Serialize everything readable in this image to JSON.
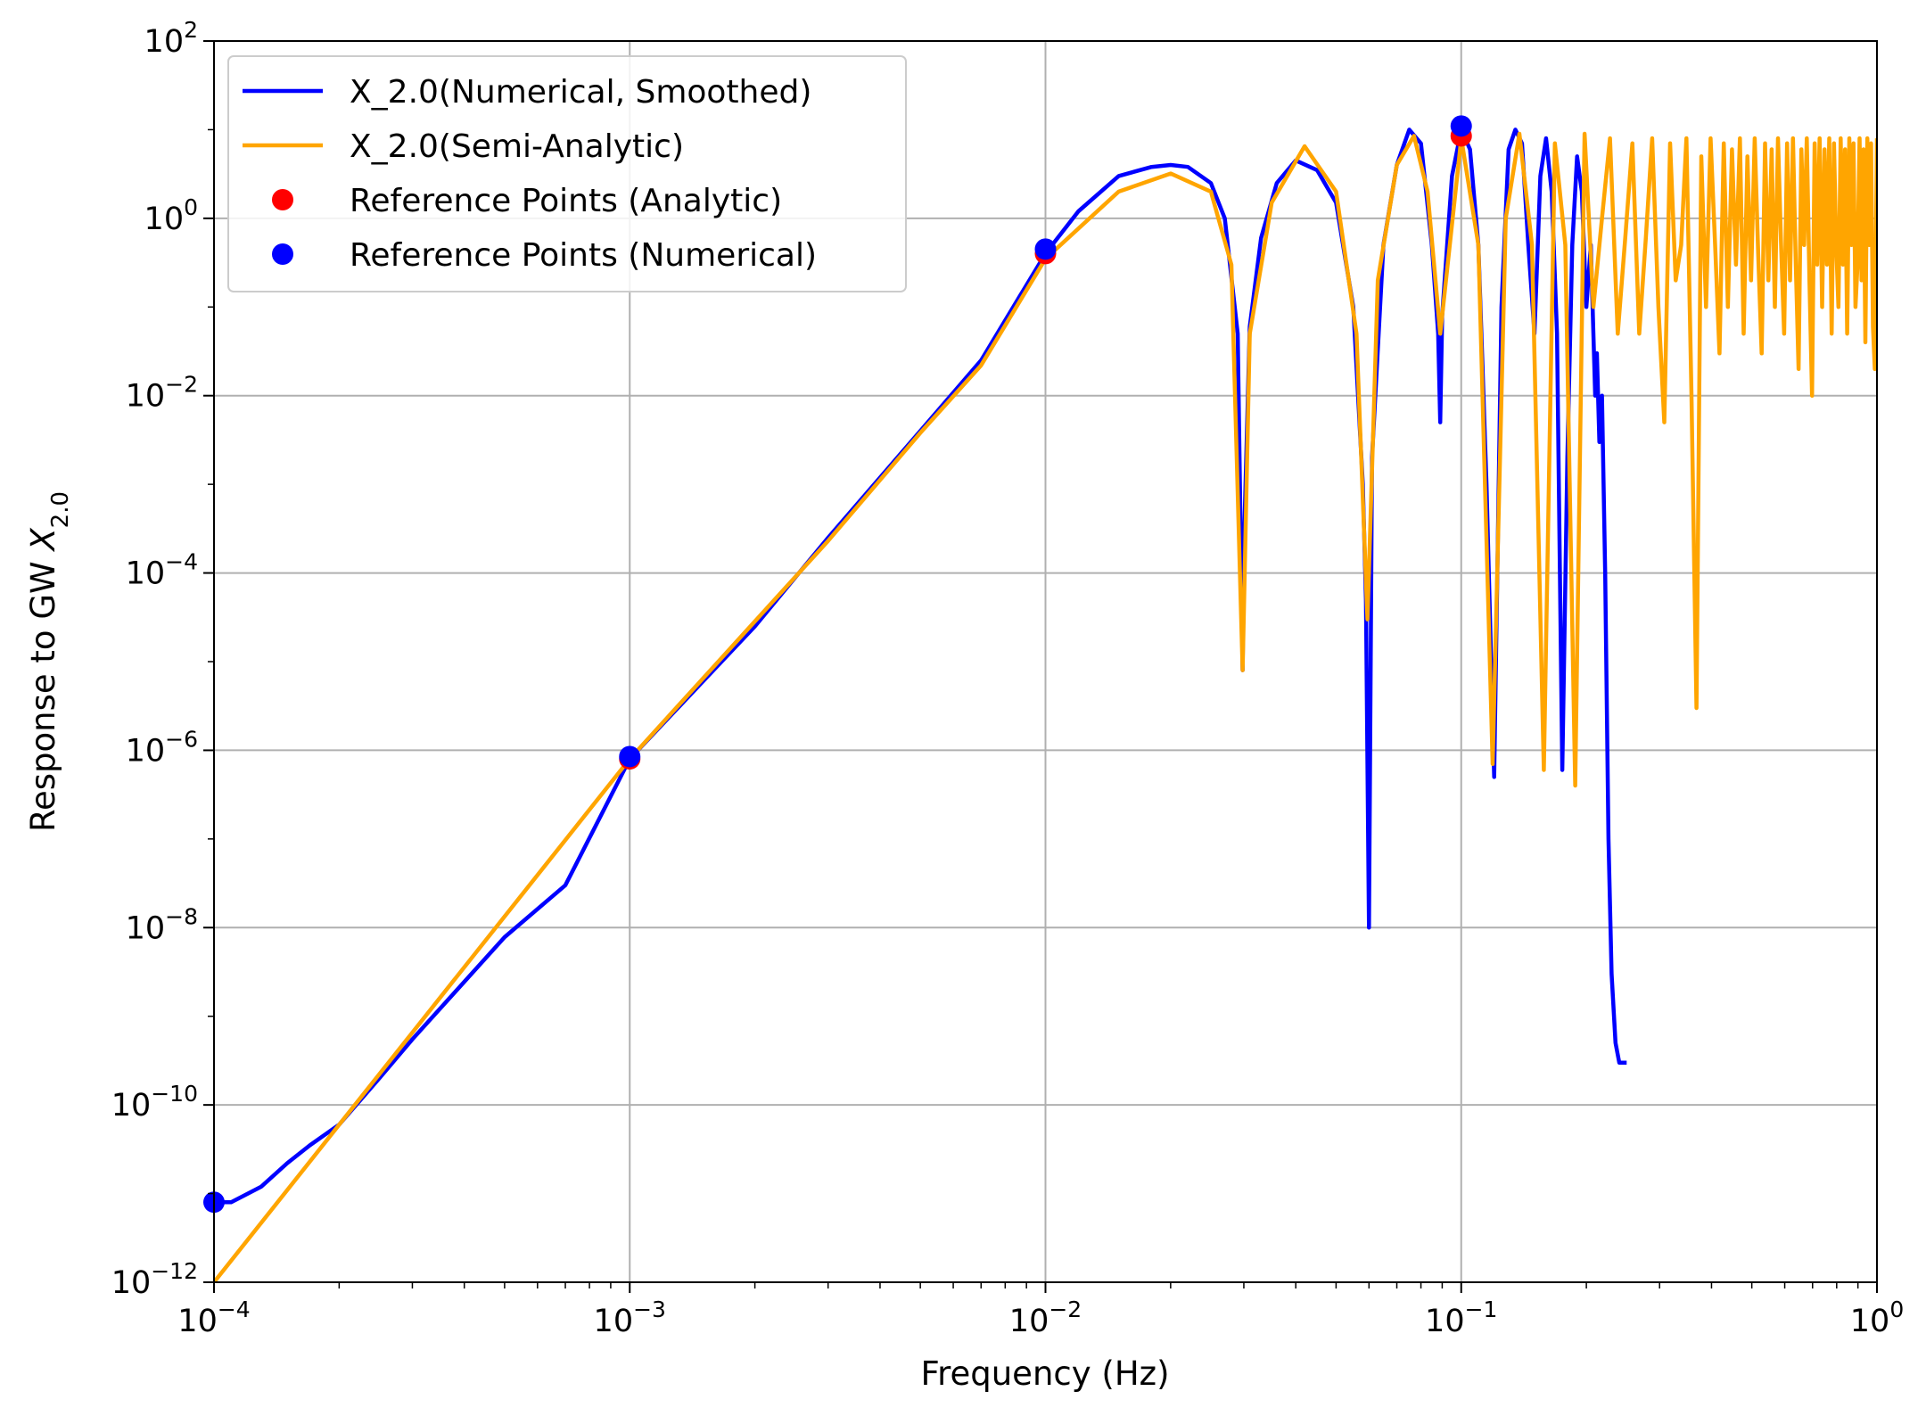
{
  "chart_data": {
    "type": "line",
    "xlabel": "Frequency (Hz)",
    "ylabel_prefix": "Response to GW ",
    "ylabel_var": "X",
    "ylabel_sub": "2.0",
    "xscale": "log",
    "yscale": "log",
    "xlim": [
      0.0001,
      1
    ],
    "ylim": [
      1e-12,
      100
    ],
    "grid": true,
    "legend_position": "upper-left",
    "x_ticks": [
      {
        "base": "10",
        "exp": "−4"
      },
      {
        "base": "10",
        "exp": "−3"
      },
      {
        "base": "10",
        "exp": "−2"
      },
      {
        "base": "10",
        "exp": "−1"
      },
      {
        "base": "10",
        "exp": "0"
      }
    ],
    "y_ticks": [
      {
        "base": "10",
        "exp": "−12"
      },
      {
        "base": "10",
        "exp": "−10"
      },
      {
        "base": "10",
        "exp": "−8"
      },
      {
        "base": "10",
        "exp": "−6"
      },
      {
        "base": "10",
        "exp": "−4"
      },
      {
        "base": "10",
        "exp": "−2"
      },
      {
        "base": "10",
        "exp": "0"
      },
      {
        "base": "10",
        "exp": "2"
      }
    ],
    "series": [
      {
        "name": "X_2.0(Numerical, Smoothed)",
        "color": "#0000ff",
        "kind": "line",
        "x": [
          0.0001,
          0.00011,
          0.00013,
          0.00015,
          0.00017,
          0.0002,
          0.00025,
          0.0003,
          0.0005,
          0.0007,
          0.001,
          0.002,
          0.003,
          0.005,
          0.007,
          0.01,
          0.012,
          0.015,
          0.018,
          0.02,
          0.022,
          0.025,
          0.027,
          0.029,
          0.0298,
          0.03,
          0.031,
          0.033,
          0.036,
          0.04,
          0.045,
          0.05,
          0.055,
          0.058,
          0.059,
          0.06,
          0.061,
          0.065,
          0.07,
          0.075,
          0.08,
          0.085,
          0.088,
          0.089,
          0.09,
          0.095,
          0.1,
          0.105,
          0.11,
          0.115,
          0.12,
          0.125,
          0.13,
          0.135,
          0.14,
          0.145,
          0.15,
          0.155,
          0.16,
          0.165,
          0.17,
          0.175,
          0.18,
          0.185,
          0.19,
          0.195,
          0.2,
          0.205,
          0.21,
          0.212,
          0.215,
          0.218,
          0.222,
          0.226,
          0.23,
          0.235,
          0.24,
          0.245,
          0.25
        ],
        "y": [
          8e-12,
          8e-12,
          1.2e-11,
          2.2e-11,
          3.5e-11,
          6e-11,
          2e-10,
          5.5e-10,
          7.8e-09,
          3e-08,
          8e-07,
          2.5e-05,
          0.00025,
          0.004,
          0.025,
          0.4,
          1.2,
          3,
          3.8,
          4,
          3.8,
          2.5,
          1,
          0.05,
          8e-06,
          0.0002,
          0.06,
          0.6,
          2.5,
          4.5,
          3.5,
          1.5,
          0.1,
          0.001,
          5e-05,
          1e-08,
          0.002,
          0.5,
          4,
          10,
          7,
          0.5,
          0.05,
          0.005,
          0.08,
          3,
          10,
          6,
          0.5,
          0.001,
          5e-07,
          0.1,
          6,
          10,
          7,
          0.5,
          0.05,
          3,
          8,
          2,
          0.05,
          6e-07,
          0.002,
          0.5,
          5,
          2,
          0.1,
          0.5,
          0.01,
          0.03,
          0.003,
          0.01,
          0.0001,
          1e-07,
          3e-09,
          5e-10,
          3e-10,
          3e-10,
          3e-10
        ]
      },
      {
        "name": "X_2.0(Semi-Analytic)",
        "color": "#ffa500",
        "kind": "line",
        "x": [
          0.0001,
          0.001,
          0.003,
          0.005,
          0.007,
          0.01,
          0.015,
          0.02,
          0.025,
          0.028,
          0.0298,
          0.031,
          0.035,
          0.042,
          0.05,
          0.056,
          0.0595,
          0.063,
          0.07,
          0.077,
          0.083,
          0.089,
          0.1,
          0.11,
          0.119,
          0.128,
          0.138,
          0.148,
          0.158,
          0.168,
          0.178,
          0.188,
          0.198,
          0.208,
          0.218,
          0.228,
          0.238,
          0.248,
          0.258,
          0.268,
          0.278,
          0.288,
          0.298,
          0.308,
          0.318,
          0.328,
          0.338,
          0.348,
          0.358,
          0.368,
          0.378,
          0.388,
          0.398,
          0.408,
          0.418,
          0.428,
          0.438,
          0.448,
          0.458,
          0.468,
          0.478,
          0.488,
          0.498,
          0.508,
          0.518,
          0.528,
          0.538,
          0.548,
          0.558,
          0.568,
          0.578,
          0.588,
          0.598,
          0.608,
          0.618,
          0.628,
          0.638,
          0.648,
          0.658,
          0.668,
          0.678,
          0.688,
          0.698,
          0.708,
          0.718,
          0.728,
          0.738,
          0.748,
          0.758,
          0.768,
          0.778,
          0.788,
          0.798,
          0.808,
          0.818,
          0.828,
          0.838,
          0.848,
          0.858,
          0.868,
          0.878,
          0.888,
          0.898,
          0.908,
          0.918,
          0.928,
          0.938,
          0.948,
          0.958,
          0.968,
          0.978,
          0.988,
          1.0
        ],
        "y": [
          1e-12,
          8e-07,
          0.00023,
          0.0038,
          0.022,
          0.35,
          2,
          3.2,
          2,
          0.3,
          8e-06,
          0.05,
          1.5,
          6.5,
          2,
          0.05,
          3e-05,
          0.2,
          4,
          8.5,
          2,
          0.05,
          8,
          0.5,
          7e-07,
          1,
          9,
          0.5,
          6e-07,
          7,
          0.5,
          4e-07,
          9,
          0.1,
          1,
          8,
          0.05,
          0.6,
          7,
          0.05,
          0.6,
          8,
          0.1,
          0.005,
          7,
          0.2,
          0.5,
          8,
          0.01,
          3e-06,
          5,
          0.1,
          8,
          0.5,
          0.03,
          7,
          0.1,
          6,
          0.3,
          8,
          0.05,
          5,
          0.2,
          8,
          0.4,
          0.03,
          7,
          0.2,
          6,
          0.1,
          8,
          0.5,
          0.05,
          7,
          0.2,
          8,
          0.3,
          0.02,
          6,
          0.5,
          8,
          0.2,
          0.01,
          7,
          0.3,
          8,
          0.1,
          6,
          0.3,
          8,
          0.05,
          7,
          0.5,
          0.1,
          8,
          0.3,
          6,
          0.05,
          8,
          0.5,
          7,
          0.1,
          0.3,
          8,
          0.2,
          6,
          0.04,
          8,
          0.5,
          7,
          0.06,
          0.02,
          8
        ]
      },
      {
        "name": "Reference Points (Analytic)",
        "color": "#ff0000",
        "kind": "points",
        "x": [
          0.001,
          0.01,
          0.1
        ],
        "y": [
          8e-07,
          0.4,
          8.5
        ]
      },
      {
        "name": "Reference Points (Numerical)",
        "color": "#0000ff",
        "kind": "points",
        "x": [
          0.0001,
          0.001,
          0.01,
          0.1
        ],
        "y": [
          8e-12,
          8.5e-07,
          0.45,
          11
        ]
      }
    ]
  }
}
